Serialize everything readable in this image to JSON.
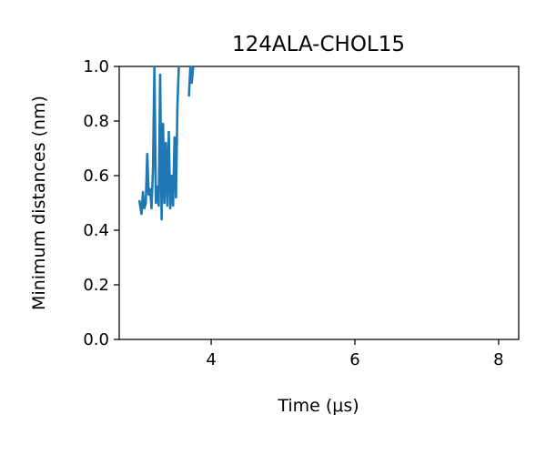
{
  "chart_data": {
    "type": "line",
    "title": "124ALA-CHOL15",
    "xlabel": "Time (μs)",
    "ylabel": "Minimum distances (nm)",
    "xlim": [
      2.72,
      8.28
    ],
    "ylim": [
      0.0,
      1.0
    ],
    "xticks": [
      4,
      6,
      8
    ],
    "yticks": [
      0.0,
      0.2,
      0.4,
      0.6,
      0.8,
      1.0
    ],
    "xtick_labels": [
      "4",
      "6",
      "8"
    ],
    "ytick_labels": [
      "0.0",
      "0.2",
      "0.4",
      "0.6",
      "0.8",
      "1.0"
    ],
    "grid": false,
    "series": [
      {
        "color": "#1f77b4",
        "x": [
          3.0,
          3.03,
          3.05,
          3.07,
          3.09,
          3.11,
          3.13,
          3.15,
          3.17,
          3.19,
          3.21,
          3.23,
          3.25,
          3.27,
          3.29,
          3.31,
          3.33,
          3.35,
          3.37,
          3.39,
          3.41,
          3.43,
          3.45,
          3.47,
          3.49,
          3.51,
          3.53,
          3.55,
          3.57,
          3.59
        ],
        "y": [
          0.51,
          0.46,
          0.54,
          0.48,
          0.5,
          0.68,
          0.53,
          0.55,
          0.48,
          0.62,
          1.0,
          0.5,
          0.56,
          0.49,
          0.97,
          0.44,
          0.79,
          0.5,
          0.72,
          0.49,
          0.76,
          0.48,
          0.6,
          0.49,
          0.74,
          0.52,
          0.86,
          1.0,
          null,
          null
        ]
      },
      {
        "color": "#1f77b4",
        "x": [
          3.69,
          3.71,
          3.73,
          3.75
        ],
        "y": [
          0.89,
          1.0,
          0.94,
          1.0
        ]
      }
    ]
  }
}
